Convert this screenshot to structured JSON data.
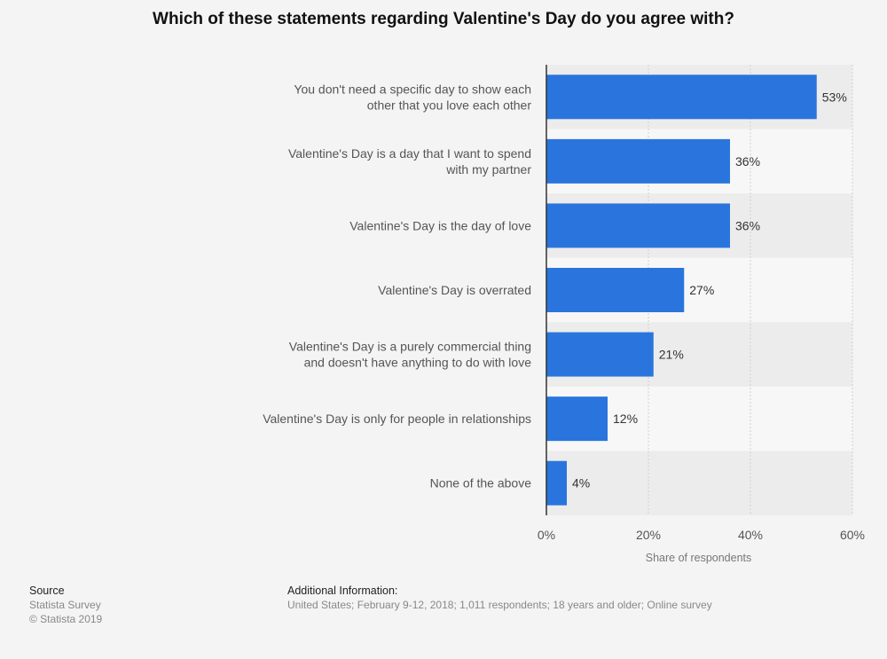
{
  "chart_data": {
    "type": "bar",
    "orientation": "horizontal",
    "title": "Which of these statements regarding Valentine's Day do you agree with?",
    "categories": [
      "You don't need a specific day to show each other that you love each other",
      "Valentine's Day is a day that I want to spend with my partner",
      "Valentine's Day is the day of love",
      "Valentine's Day is overrated",
      "Valentine's Day is a purely commercial thing and doesn't have anything to do with love",
      "Valentine's Day is only for people in relationships",
      "None of the above"
    ],
    "category_lines": [
      [
        "You don't need a specific day to show each",
        "other that you love each other"
      ],
      [
        "Valentine's Day is a day that I want to spend",
        "with my partner"
      ],
      [
        "Valentine's Day is the day of love"
      ],
      [
        "Valentine's Day is overrated"
      ],
      [
        "Valentine's Day is a purely commercial thing",
        "and doesn't have anything to do with love"
      ],
      [
        "Valentine's Day is only for people in relationships"
      ],
      [
        "None of the above"
      ]
    ],
    "values": [
      53,
      36,
      36,
      27,
      21,
      12,
      4
    ],
    "value_labels": [
      "53%",
      "36%",
      "36%",
      "27%",
      "21%",
      "12%",
      "4%"
    ],
    "xlabel": "Share of respondents",
    "xlim": [
      0,
      60
    ],
    "xticks": [
      0,
      20,
      40,
      60
    ],
    "xtick_labels": [
      "0%",
      "20%",
      "40%",
      "60%"
    ],
    "grid": true,
    "colors": {
      "bar": "#2a75dd",
      "band": "#ececec",
      "band_alt": "#f7f7f7"
    }
  },
  "footer": {
    "source_heading": "Source",
    "source_lines": [
      "Statista Survey",
      "© Statista 2019"
    ],
    "info_heading": "Additional Information:",
    "info_text": "United States; February 9-12, 2018; 1,011 respondents; 18 years and older; Online survey"
  }
}
